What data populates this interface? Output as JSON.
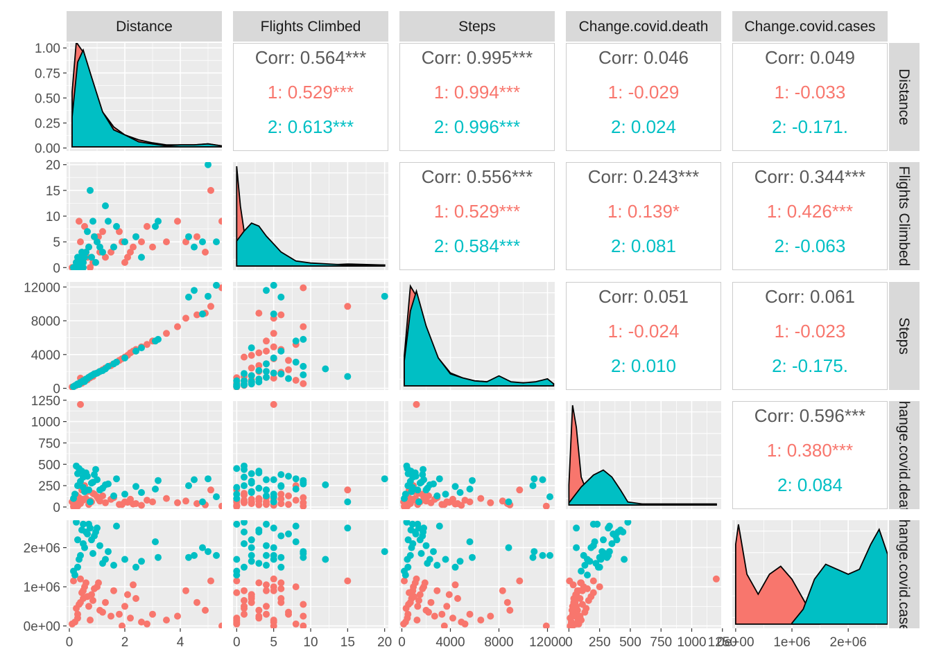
{
  "colors": {
    "group1": "#F8766D",
    "group2": "#00BFC4",
    "strip": "#D9D9D9",
    "panel": "#EBEBEB",
    "corr": "#595959",
    "axis": "#4D4D4D"
  },
  "variables": [
    "Distance",
    "Flights Climbed",
    "Steps",
    "Change.covid.death",
    "Change.covid.cases"
  ],
  "row_strip_labels": [
    "Distance",
    "Flights Climbed",
    "Steps",
    "Change.covid.death",
    "Change.covid.cases"
  ],
  "axes": [
    {
      "lim": [
        -0.1,
        5.5
      ],
      "ticks": [
        0,
        2,
        4
      ],
      "tick_labels": [
        "0",
        "2",
        "4"
      ]
    },
    {
      "lim": [
        -0.5,
        20.5
      ],
      "ticks": [
        0,
        5,
        10,
        15,
        20
      ],
      "tick_labels": [
        "0",
        "5",
        "10",
        "15",
        "20"
      ]
    },
    {
      "lim": [
        -200,
        12600
      ],
      "ticks": [
        0,
        4000,
        8000,
        12000
      ],
      "tick_labels": [
        "0",
        "4000",
        "8000",
        "12000"
      ]
    },
    {
      "lim": [
        -25,
        1240
      ],
      "ticks": [
        0,
        250,
        500,
        750,
        1000,
        1250
      ],
      "tick_labels": [
        "0",
        "250",
        "500",
        "750",
        "1000",
        "1250"
      ]
    },
    {
      "lim": [
        -60000,
        2700000
      ],
      "ticks": [
        0,
        1000000,
        2000000
      ],
      "tick_labels": [
        "0e+00",
        "1e+06",
        "2e+06"
      ]
    }
  ],
  "density_y_axis": {
    "lim": [
      -0.03,
      1.05
    ],
    "ticks": [
      0,
      0.25,
      0.5,
      0.75,
      1.0
    ],
    "tick_labels": [
      "0.00",
      "0.25",
      "0.50",
      "0.75",
      "1.00"
    ]
  },
  "correlations": [
    {
      "row": 0,
      "col": 1,
      "overall": "Corr: 0.564***",
      "g1": "1: 0.529***",
      "g2": "2: 0.613***"
    },
    {
      "row": 0,
      "col": 2,
      "overall": "Corr: 0.995***",
      "g1": "1: 0.994***",
      "g2": "2: 0.996***"
    },
    {
      "row": 0,
      "col": 3,
      "overall": "Corr: 0.046",
      "g1": "1: -0.029",
      "g2": "2: 0.024"
    },
    {
      "row": 0,
      "col": 4,
      "overall": "Corr: 0.049",
      "g1": "1: -0.033",
      "g2": "2: -0.171."
    },
    {
      "row": 1,
      "col": 2,
      "overall": "Corr: 0.556***",
      "g1": "1: 0.529***",
      "g2": "2: 0.584***"
    },
    {
      "row": 1,
      "col": 3,
      "overall": "Corr: 0.243***",
      "g1": "1: 0.139*",
      "g2": "2: 0.081"
    },
    {
      "row": 1,
      "col": 4,
      "overall": "Corr: 0.344***",
      "g1": "1: 0.426***",
      "g2": "2: -0.063"
    },
    {
      "row": 2,
      "col": 3,
      "overall": "Corr: 0.051",
      "g1": "1: -0.024",
      "g2": "2: 0.010"
    },
    {
      "row": 2,
      "col": 4,
      "overall": "Corr: 0.061",
      "g1": "1: -0.023",
      "g2": "2: -0.175."
    },
    {
      "row": 3,
      "col": 4,
      "overall": "Corr: 0.596***",
      "g1": "1: 0.380***",
      "g2": "2: 0.084"
    }
  ],
  "chart_data": {
    "type": "scatter",
    "subtype": "pairs-plot",
    "grid": true,
    "groups": [
      "1",
      "2"
    ],
    "variables": [
      "Distance",
      "Flights Climbed",
      "Steps",
      "Change.covid.death",
      "Change.covid.cases"
    ],
    "points": {
      "1": [
        [
          0.2,
          0,
          300,
          20,
          100000
        ],
        [
          0.3,
          1,
          500,
          50,
          300000
        ],
        [
          0.4,
          2,
          700,
          40,
          600000
        ],
        [
          0.5,
          1,
          900,
          80,
          900000
        ],
        [
          0.6,
          3,
          1100,
          100,
          1100000
        ],
        [
          0.7,
          4,
          1300,
          30,
          500000
        ],
        [
          0.8,
          2,
          1500,
          60,
          800000
        ],
        [
          1.0,
          5,
          1800,
          120,
          1000000
        ],
        [
          0.3,
          0,
          450,
          10,
          200000
        ],
        [
          0.5,
          2,
          800,
          90,
          700000
        ],
        [
          0.9,
          6,
          1700,
          150,
          950000
        ],
        [
          1.1,
          3,
          2000,
          70,
          400000
        ],
        [
          1.3,
          2,
          2400,
          50,
          600000
        ],
        [
          1.6,
          4,
          2900,
          110,
          900000
        ],
        [
          1.8,
          7,
          3300,
          30,
          300000
        ],
        [
          2.0,
          1,
          3700,
          60,
          500000
        ],
        [
          2.2,
          3,
          4200,
          90,
          200000
        ],
        [
          2.4,
          6,
          4600,
          40,
          700000
        ],
        [
          2.6,
          5,
          4900,
          20,
          100000
        ],
        [
          2.8,
          8,
          5200,
          80,
          50000
        ],
        [
          3.0,
          4,
          5600,
          60,
          300000
        ],
        [
          3.5,
          5,
          6500,
          100,
          150000
        ],
        [
          3.9,
          9,
          7300,
          50,
          250000
        ],
        [
          4.2,
          5,
          8300,
          70,
          900000
        ],
        [
          4.6,
          6,
          8700,
          40,
          600000
        ],
        [
          5.1,
          15,
          9700,
          200,
          1150000
        ],
        [
          5.5,
          9,
          11900,
          10,
          0
        ],
        [
          0.4,
          5,
          1200,
          1200,
          1200000
        ],
        [
          1.9,
          5,
          3500,
          30,
          0
        ],
        [
          0.15,
          0,
          200,
          5,
          1150000
        ],
        [
          0.25,
          1,
          350,
          140,
          450000
        ],
        [
          0.45,
          0,
          600,
          200,
          850000
        ],
        [
          0.65,
          2,
          1000,
          180,
          750000
        ],
        [
          0.85,
          1,
          1400,
          160,
          650000
        ],
        [
          1.2,
          7,
          2200,
          130,
          350000
        ],
        [
          1.5,
          3,
          2700,
          90,
          250000
        ],
        [
          0.55,
          8,
          950,
          250,
          1000000
        ],
        [
          2.1,
          2,
          3900,
          55,
          800000
        ],
        [
          2.3,
          4,
          4400,
          35,
          1050000
        ],
        [
          4.9,
          3,
          8900,
          25,
          400000
        ],
        [
          0.1,
          0,
          150,
          60,
          50000
        ],
        [
          0.35,
          9,
          550,
          110,
          550000
        ],
        [
          1.05,
          6,
          1900,
          95,
          1100000
        ],
        [
          0.75,
          0,
          1250,
          75,
          150000
        ]
      ],
      "2": [
        [
          0.2,
          0,
          300,
          150,
          1300000
        ],
        [
          0.3,
          1,
          500,
          250,
          1500000
        ],
        [
          0.4,
          2,
          700,
          300,
          1800000
        ],
        [
          0.5,
          1,
          900,
          350,
          2100000
        ],
        [
          0.6,
          3,
          1100,
          400,
          2400000
        ],
        [
          0.7,
          4,
          1300,
          200,
          2600000
        ],
        [
          0.8,
          2,
          1500,
          280,
          2200000
        ],
        [
          1.0,
          5,
          1800,
          320,
          2500000
        ],
        [
          0.35,
          0,
          450,
          450,
          1700000
        ],
        [
          0.55,
          2,
          800,
          180,
          2000000
        ],
        [
          0.9,
          6,
          1700,
          380,
          2300000
        ],
        [
          1.2,
          3,
          2100,
          220,
          1600000
        ],
        [
          1.4,
          9,
          2600,
          270,
          1900000
        ],
        [
          1.7,
          8,
          3100,
          330,
          2550000
        ],
        [
          2.0,
          5,
          3600,
          150,
          1700000
        ],
        [
          2.4,
          6,
          4400,
          240,
          1500000
        ],
        [
          3.2,
          9,
          5800,
          310,
          1750000
        ],
        [
          4.3,
          6,
          10800,
          250,
          1750000
        ],
        [
          4.5,
          4,
          11600,
          320,
          1800000
        ],
        [
          5.0,
          20,
          10900,
          330,
          1900000
        ],
        [
          5.3,
          5,
          12200,
          120,
          1800000
        ],
        [
          0.75,
          15,
          1400,
          60,
          2500000
        ],
        [
          1.3,
          12,
          2300,
          260,
          1700000
        ],
        [
          0.25,
          1,
          400,
          480,
          2650000
        ],
        [
          0.45,
          3,
          750,
          420,
          2450000
        ],
        [
          0.65,
          7,
          1150,
          360,
          2350000
        ],
        [
          1.1,
          4,
          2000,
          200,
          2050000
        ],
        [
          0.15,
          0,
          200,
          100,
          1400000
        ],
        [
          0.85,
          9,
          1600,
          290,
          1850000
        ],
        [
          2.6,
          2,
          4800,
          170,
          1650000
        ],
        [
          4.8,
          5,
          8800,
          60,
          2000000
        ],
        [
          0.3,
          2,
          520,
          390,
          2200000
        ],
        [
          0.5,
          0,
          880,
          230,
          2600000
        ],
        [
          1.6,
          4,
          2900,
          130,
          1550000
        ],
        [
          3.1,
          8,
          5600,
          210,
          2150000
        ],
        [
          0.95,
          1,
          1750,
          440,
          2400000
        ]
      ]
    },
    "densities": {
      "0": {
        "1": [
          [
            0.1,
            0.55
          ],
          [
            0.25,
            1.05
          ],
          [
            0.5,
            0.95
          ],
          [
            0.8,
            0.6
          ],
          [
            1.2,
            0.35
          ],
          [
            1.6,
            0.2
          ],
          [
            2.0,
            0.12
          ],
          [
            2.5,
            0.07
          ],
          [
            3.0,
            0.04
          ],
          [
            3.5,
            0.02
          ],
          [
            4.0,
            0.02
          ],
          [
            4.5,
            0.02
          ],
          [
            5.0,
            0.03
          ],
          [
            5.5,
            0.01
          ]
        ],
        "2": [
          [
            0.1,
            0.3
          ],
          [
            0.3,
            0.85
          ],
          [
            0.5,
            0.97
          ],
          [
            0.8,
            0.7
          ],
          [
            1.2,
            0.35
          ],
          [
            1.6,
            0.17
          ],
          [
            2.0,
            0.12
          ],
          [
            2.5,
            0.05
          ],
          [
            3.0,
            0.03
          ],
          [
            3.5,
            0.01
          ],
          [
            4.0,
            0.02
          ],
          [
            4.5,
            0.02
          ],
          [
            5.0,
            0.03
          ],
          [
            5.5,
            0.01
          ]
        ]
      },
      "1": {
        "1": [
          [
            0,
            1.0
          ],
          [
            0.5,
            0.6
          ],
          [
            1,
            0.35
          ],
          [
            2,
            0.3
          ],
          [
            3,
            0.2
          ],
          [
            5,
            0.1
          ],
          [
            7,
            0.05
          ],
          [
            9,
            0.03
          ],
          [
            12,
            0.01
          ],
          [
            15,
            0.02
          ],
          [
            20,
            0.01
          ]
        ],
        "2": [
          [
            0,
            0.25
          ],
          [
            1,
            0.35
          ],
          [
            2,
            0.43
          ],
          [
            3,
            0.4
          ],
          [
            4,
            0.3
          ],
          [
            5,
            0.22
          ],
          [
            6,
            0.14
          ],
          [
            8,
            0.05
          ],
          [
            10,
            0.03
          ],
          [
            15,
            0.01
          ],
          [
            20,
            0.01
          ]
        ]
      },
      "2": {
        "1": [
          [
            200,
            0.3
          ],
          [
            700,
            1.0
          ],
          [
            1200,
            0.9
          ],
          [
            2000,
            0.55
          ],
          [
            3000,
            0.28
          ],
          [
            4000,
            0.13
          ],
          [
            5000,
            0.08
          ],
          [
            6000,
            0.05
          ],
          [
            7000,
            0.04
          ],
          [
            8000,
            0.05
          ],
          [
            9000,
            0.03
          ],
          [
            10000,
            0.03
          ],
          [
            11000,
            0.03
          ],
          [
            12000,
            0.05
          ],
          [
            12500,
            0.02
          ]
        ],
        "2": [
          [
            200,
            0.25
          ],
          [
            700,
            0.75
          ],
          [
            1200,
            0.95
          ],
          [
            2000,
            0.6
          ],
          [
            3000,
            0.28
          ],
          [
            4000,
            0.12
          ],
          [
            5000,
            0.08
          ],
          [
            6000,
            0.05
          ],
          [
            7000,
            0.04
          ],
          [
            8000,
            0.1
          ],
          [
            9000,
            0.04
          ],
          [
            10000,
            0.03
          ],
          [
            11000,
            0.04
          ],
          [
            12000,
            0.07
          ],
          [
            12500,
            0.02
          ]
        ]
      },
      "3": {
        "1": [
          [
            0,
            0.2
          ],
          [
            30,
            1.0
          ],
          [
            60,
            0.78
          ],
          [
            100,
            0.28
          ],
          [
            150,
            0.12
          ],
          [
            200,
            0.06
          ],
          [
            300,
            0.03
          ],
          [
            400,
            0.02
          ],
          [
            600,
            0.01
          ],
          [
            900,
            0.01
          ],
          [
            1200,
            0.01
          ]
        ],
        "2": [
          [
            0,
            0.02
          ],
          [
            100,
            0.18
          ],
          [
            200,
            0.3
          ],
          [
            280,
            0.35
          ],
          [
            350,
            0.28
          ],
          [
            420,
            0.15
          ],
          [
            480,
            0.03
          ],
          [
            600,
            0.01
          ],
          [
            900,
            0.01
          ],
          [
            1200,
            0.01
          ]
        ]
      },
      "4": {
        "1": [
          [
            0,
            0.8
          ],
          [
            50000,
            1.0
          ],
          [
            200000,
            0.5
          ],
          [
            400000,
            0.3
          ],
          [
            600000,
            0.5
          ],
          [
            800000,
            0.58
          ],
          [
            1000000,
            0.45
          ],
          [
            1200000,
            0.25
          ],
          [
            1400000,
            0.05
          ],
          [
            1500000,
            0.01
          ]
        ],
        "2": [
          [
            1000000,
            0.01
          ],
          [
            1200000,
            0.15
          ],
          [
            1400000,
            0.45
          ],
          [
            1600000,
            0.6
          ],
          [
            1800000,
            0.55
          ],
          [
            2000000,
            0.5
          ],
          [
            2200000,
            0.55
          ],
          [
            2400000,
            0.8
          ],
          [
            2550000,
            0.95
          ],
          [
            2700000,
            0.7
          ]
        ]
      }
    }
  }
}
